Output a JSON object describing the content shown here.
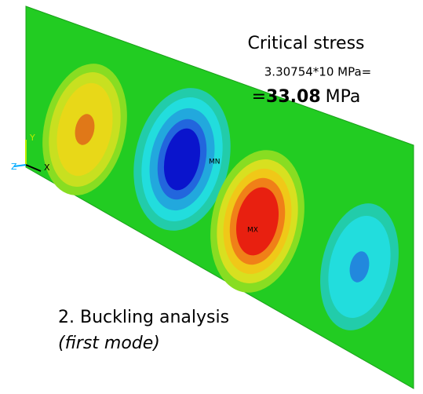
{
  "annotation": {
    "title": "Critical stress",
    "formula": "3.30754*10 MPa=",
    "result_prefix": "=",
    "result_value": "33.08",
    "result_unit": "MPa"
  },
  "caption": {
    "line1": "2. Buckling analysis",
    "line2": "(first mode)"
  },
  "triad": {
    "y": "Y",
    "z": "Z",
    "x": "X"
  },
  "markers": {
    "min": "MN",
    "max": "MX"
  }
}
